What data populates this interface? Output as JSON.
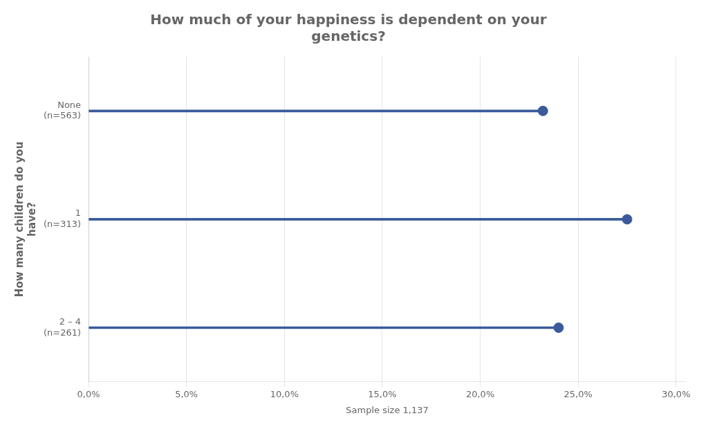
{
  "chart_data": {
    "type": "lollipop",
    "title": "How much of your happiness is dependent on your\ngenetics?",
    "ylabel": "How many children do you\nhave?",
    "xlabel": "Sample size 1,137",
    "categories": [
      "None\n(n=563)",
      "1\n(n=313)",
      "2 – 4\n(n=261)"
    ],
    "values": [
      0.232,
      0.275,
      0.24
    ],
    "color": "#3A5A9B",
    "orientation": "horizontal",
    "xlim": [
      0,
      0.305
    ],
    "xticks": [
      {
        "value": 0.0,
        "label": "0,0%"
      },
      {
        "value": 0.05,
        "label": "5,0%"
      },
      {
        "value": 0.1,
        "label": "10,0%"
      },
      {
        "value": 0.15,
        "label": "15,0%"
      },
      {
        "value": 0.2,
        "label": "20,0%"
      },
      {
        "value": 0.25,
        "label": "25,0%"
      },
      {
        "value": 0.3,
        "label": "30,0%"
      }
    ],
    "grid": true
  }
}
